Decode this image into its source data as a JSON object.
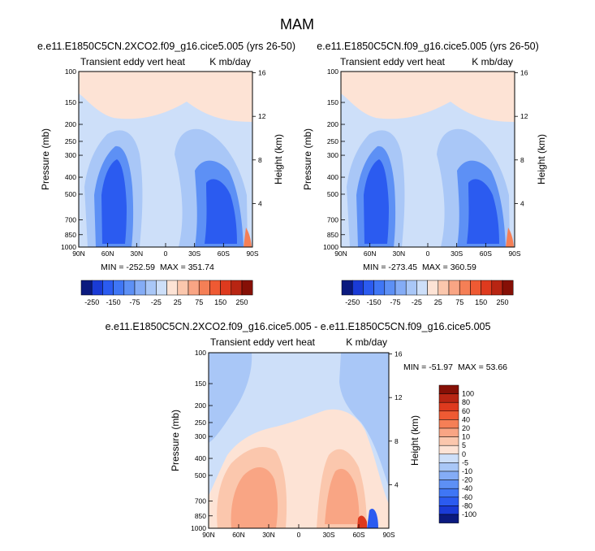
{
  "figure": {
    "title": "MAM"
  },
  "colors": {
    "neg": [
      "#0b1a7f",
      "#1a3bd6",
      "#2b5bf0",
      "#3f76f5",
      "#5d90f5",
      "#84acf6",
      "#a9c7f7",
      "#cddff9"
    ],
    "pos": [
      "#fde3d5",
      "#fbc7ad",
      "#f9a584",
      "#f57f56",
      "#ef5a33",
      "#de3a1e",
      "#b82513",
      "#861006"
    ],
    "background": "#ffffff"
  },
  "chart_data": [
    {
      "type": "heatmap",
      "title": "e.e11.E1850C5CN.2XCO2.f09_g16.cice5.005 (yrs 26-50)",
      "left_label": "Transient eddy vert heat",
      "right_label": "K mb/day",
      "xlabel": "",
      "ylabel": "Pressure (mb)",
      "y2label": "Height (km)",
      "x_ticks": [
        "90N",
        "60N",
        "30N",
        "0",
        "30S",
        "60S",
        "90S"
      ],
      "x_values": [
        90,
        60,
        30,
        0,
        -30,
        -60,
        -90
      ],
      "y_ticks": [
        100,
        150,
        200,
        250,
        300,
        400,
        500,
        700,
        850,
        1000
      ],
      "y2_ticks": [
        16,
        12,
        8,
        4
      ],
      "y_scale": "log",
      "ylim": [
        1000,
        100
      ],
      "xlim": [
        90,
        -90
      ],
      "min_label": "MIN = -252.59",
      "max_label": "MAX = 351.74",
      "stats": {
        "min": -252.59,
        "max": 351.74
      }
    },
    {
      "type": "heatmap",
      "title": "e.e11.E1850C5CN.f09_g16.cice5.005 (yrs 26-50)",
      "left_label": "Transient eddy vert heat",
      "right_label": "K mb/day",
      "xlabel": "",
      "ylabel": "Pressure (mb)",
      "y2label": "Height (km)",
      "x_ticks": [
        "90N",
        "60N",
        "30N",
        "0",
        "30S",
        "60S",
        "90S"
      ],
      "x_values": [
        90,
        60,
        30,
        0,
        -30,
        -60,
        -90
      ],
      "y_ticks": [
        100,
        150,
        200,
        250,
        300,
        400,
        500,
        700,
        850,
        1000
      ],
      "y2_ticks": [
        16,
        12,
        8,
        4
      ],
      "y_scale": "log",
      "ylim": [
        1000,
        100
      ],
      "xlim": [
        90,
        -90
      ],
      "min_label": "MIN = -273.45",
      "max_label": "MAX = 360.59",
      "stats": {
        "min": -273.45,
        "max": 360.59
      }
    },
    {
      "type": "heatmap",
      "title": "e.e11.E1850C5CN.2XCO2.f09_g16.cice5.005 - e.e11.E1850C5CN.f09_g16.cice5.005",
      "left_label": "Transient eddy vert heat",
      "right_label": "K mb/day",
      "xlabel": "",
      "ylabel": "Pressure (mb)",
      "y2label": "Height (km)",
      "x_ticks": [
        "90N",
        "60N",
        "30N",
        "0",
        "30S",
        "60S",
        "90S"
      ],
      "x_values": [
        90,
        60,
        30,
        0,
        -30,
        -60,
        -90
      ],
      "y_ticks": [
        100,
        150,
        200,
        250,
        300,
        400,
        500,
        700,
        850,
        1000
      ],
      "y2_ticks": [
        16,
        12,
        8,
        4
      ],
      "y_scale": "log",
      "ylim": [
        1000,
        100
      ],
      "xlim": [
        90,
        -90
      ],
      "min_label": "MIN = -51.97",
      "max_label": "MAX =  53.66",
      "stats": {
        "min": -51.97,
        "max": 53.66
      }
    }
  ],
  "colorbars": {
    "shared": {
      "orientation": "horizontal",
      "tick_labels": [
        "-250",
        "-150",
        "-75",
        "-25",
        "25",
        "75",
        "150",
        "250"
      ]
    },
    "diff": {
      "orientation": "vertical",
      "tick_labels": [
        "100",
        "80",
        "60",
        "40",
        "20",
        "10",
        "5",
        "0",
        "-5",
        "-10",
        "-20",
        "-40",
        "-60",
        "-80",
        "-100"
      ]
    }
  }
}
